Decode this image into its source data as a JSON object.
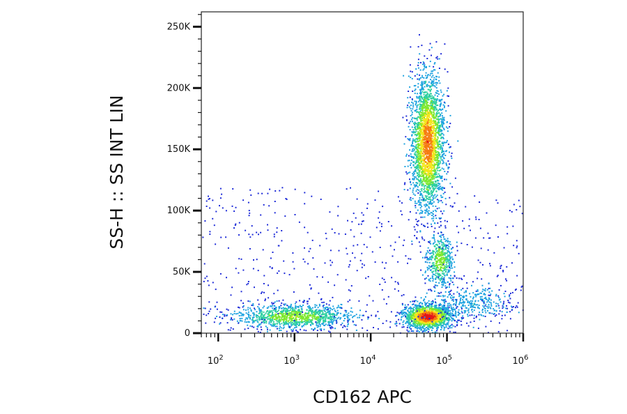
{
  "chart_data": {
    "type": "scatter",
    "style": "flow-cytometry density dot plot",
    "xlabel": "CD162 APC",
    "ylabel": "SS-H :: SS INT LIN",
    "x_scale": "biexponential (log)",
    "xlim": [
      60,
      1000000
    ],
    "ylim": [
      0,
      262144
    ],
    "y_ticks": [
      {
        "value": 0,
        "label": "0"
      },
      {
        "value": 50000,
        "label": "50K"
      },
      {
        "value": 100000,
        "label": "100K"
      },
      {
        "value": 150000,
        "label": "150K"
      },
      {
        "value": 200000,
        "label": "200K"
      },
      {
        "value": 250000,
        "label": "250K"
      }
    ],
    "x_ticks": [
      {
        "value": 100,
        "base": "10",
        "exp": "2"
      },
      {
        "value": 1000,
        "base": "10",
        "exp": "3"
      },
      {
        "value": 10000,
        "base": "10",
        "exp": "4"
      },
      {
        "value": 100000,
        "base": "10",
        "exp": "5"
      },
      {
        "value": 1000000,
        "base": "10",
        "exp": "6"
      }
    ],
    "color_scale": [
      "#1f2cd8",
      "#1fa3e0",
      "#2fd0a0",
      "#7ee82e",
      "#f3e51c",
      "#f57c12",
      "#e3141a"
    ],
    "populations": [
      {
        "x_center": 1000,
        "x_spread_decades": 0.4,
        "y_center": 14000,
        "y_spread": 5000,
        "relative_count": 0.16,
        "peak_density": "green"
      },
      {
        "x_center": 55000,
        "x_spread_decades": 0.16,
        "y_center": 14000,
        "y_spread": 5000,
        "relative_count": 0.22,
        "peak_density": "red"
      },
      {
        "x_center": 55000,
        "x_spread_decades": 0.11,
        "y_center": 155000,
        "y_spread": 28000,
        "relative_count": 0.36,
        "peak_density": "orange"
      },
      {
        "x_center": 80000,
        "x_spread_decades": 0.09,
        "y_center": 60000,
        "y_spread": 11000,
        "relative_count": 0.07,
        "peak_density": "green"
      },
      {
        "x_center": 200000,
        "x_spread_decades": 0.3,
        "y_center": 25000,
        "y_spread": 7000,
        "relative_count": 0.05,
        "peak_density": "blue"
      }
    ]
  }
}
